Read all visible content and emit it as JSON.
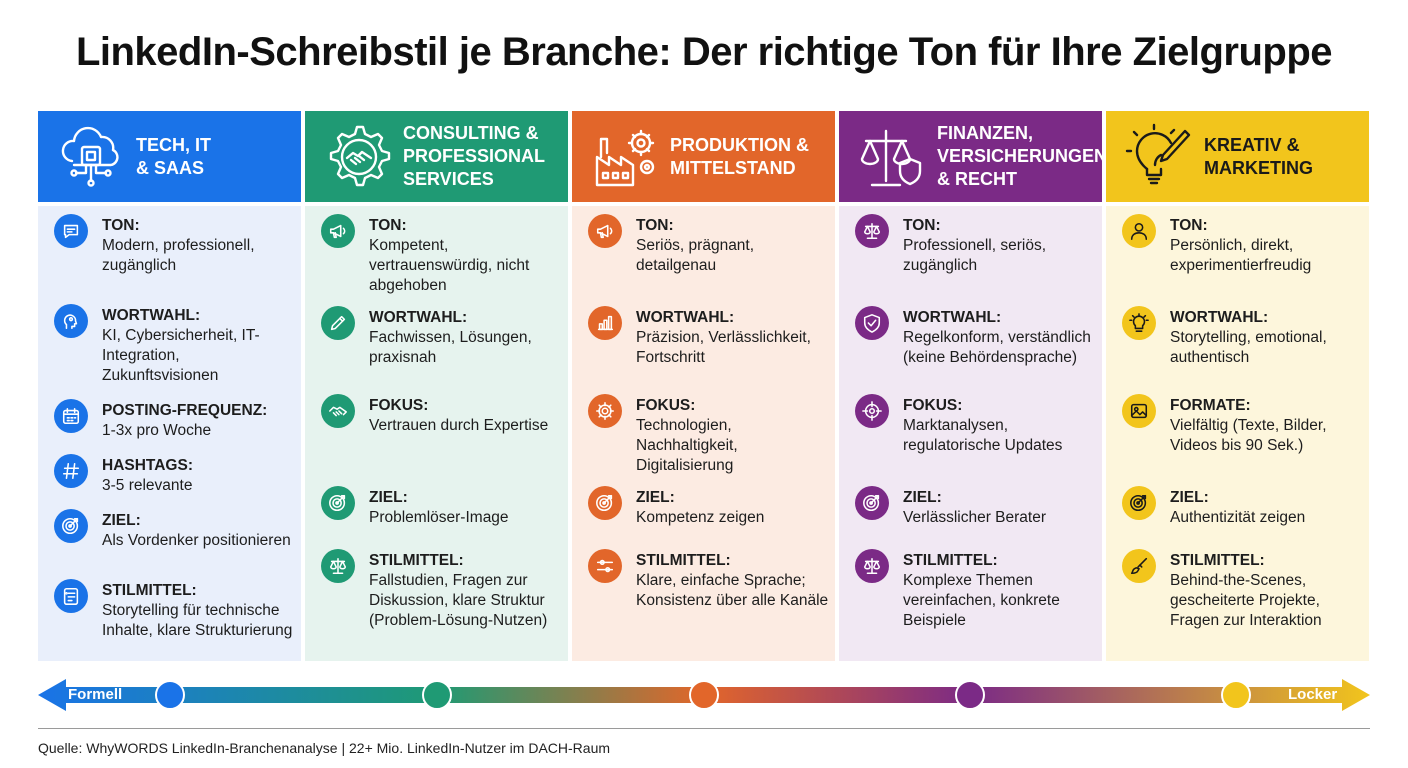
{
  "title": "LinkedIn-Schreibstil je Branche: Der richtige Ton für Ihre Zielgruppe",
  "columns": [
    {
      "header": "TECH, IT\n& SAAS",
      "header_icon": "cloud-chip-icon",
      "color": "#1a73e8",
      "body_bg": "#e9effb",
      "items": [
        {
          "icon": "chat-icon",
          "label": "TON:",
          "value": "Modern, professionell, zugänglich"
        },
        {
          "icon": "ai-head-icon",
          "label": "WORTWAHL:",
          "value": "KI, Cybersicherheit, IT-Integration, Zukunftsvisionen"
        },
        {
          "icon": "calendar-icon",
          "label": "POSTING-FREQUENZ:",
          "value": "1-3x pro Woche"
        },
        {
          "icon": "hashtag-icon",
          "label": "HASHTAGS:",
          "value": "3-5 relevante"
        },
        {
          "icon": "target-icon",
          "label": "ZIEL:",
          "value": "Als Vordenker positionieren"
        },
        {
          "icon": "document-icon",
          "label": "STILMITTEL:",
          "value": "Storytelling für technische Inhalte, klare Strukturierung"
        }
      ]
    },
    {
      "header": "CONSULTING &\nPROFESSIONAL\nSERVICES",
      "header_icon": "gear-handshake-icon",
      "color": "#1f9a74",
      "body_bg": "#e6f3ee",
      "items": [
        {
          "icon": "megaphone-icon",
          "label": "TON:",
          "value": "Kompetent, vertrauenswürdig, nicht abgehoben"
        },
        {
          "icon": "pencil-icon",
          "label": "WORTWAHL:",
          "value": "Fachwissen, Lösungen, praxisnah"
        },
        {
          "icon": "handshake-icon",
          "label": "FOKUS:",
          "value": "Vertrauen durch Expertise"
        },
        {
          "icon": "target-icon",
          "label": "ZIEL:",
          "value": "Problemlöser-Image"
        },
        {
          "icon": "scale-icon",
          "label": "STILMITTEL:",
          "value": "Fallstudien, Fragen zur Diskussion, klare Struktur (Problem-Lösung-Nutzen)"
        }
      ]
    },
    {
      "header": "PRODUKTION &\nMITTELSTAND",
      "header_icon": "factory-gears-icon",
      "color": "#e2662a",
      "body_bg": "#fcebe2",
      "items": [
        {
          "icon": "megaphone-icon",
          "label": "TON:",
          "value": "Seriös, prägnant, detailgenau"
        },
        {
          "icon": "bar-chart-icon",
          "label": "WORTWAHL:",
          "value": "Präzision, Verlässlichkeit, Fortschritt"
        },
        {
          "icon": "gear-icon",
          "label": "FOKUS:",
          "value": "Technologien, Nachhaltigkeit, Digitalisierung"
        },
        {
          "icon": "target-icon",
          "label": "ZIEL:",
          "value": "Kompetenz zeigen"
        },
        {
          "icon": "sliders-icon",
          "label": "STILMITTEL:",
          "value": "Klare, einfache Sprache; Konsistenz über alle Kanäle"
        }
      ]
    },
    {
      "header": "FINANZEN,\nVERSICHERUNGEN\n& RECHT",
      "header_icon": "scale-shield-icon",
      "color": "#7b2a86",
      "body_bg": "#f1e8f3",
      "items": [
        {
          "icon": "scale-icon",
          "label": "TON:",
          "value": "Professionell, seriös, zugänglich"
        },
        {
          "icon": "shield-icon",
          "label": "WORTWAHL:",
          "value": "Regelkonform, verständlich (keine Behördensprache)"
        },
        {
          "icon": "crosshair-icon",
          "label": "FOKUS:",
          "value": "Marktanalysen, regulatorische Updates"
        },
        {
          "icon": "target-icon",
          "label": "ZIEL:",
          "value": "Verlässlicher Berater"
        },
        {
          "icon": "scale-icon",
          "label": "STILMITTEL:",
          "value": "Komplexe Themen vereinfachen, konkrete Beispiele"
        }
      ]
    },
    {
      "header": "KREATIV &\nMARKETING",
      "header_icon": "lightbulb-brush-icon",
      "color": "#f2c51c",
      "body_bg": "#fdf6dc",
      "items": [
        {
          "icon": "person-icon",
          "label": "TON:",
          "value": "Persönlich, direkt, experimentierfreudig"
        },
        {
          "icon": "lightbulb-icon",
          "label": "WORTWAHL:",
          "value": "Storytelling, emotional, authentisch"
        },
        {
          "icon": "image-icon",
          "label": "FORMATE:",
          "value": "Vielfältig (Texte, Bilder, Videos bis 90 Sek.)"
        },
        {
          "icon": "target-icon",
          "label": "ZIEL:",
          "value": "Authentizität zeigen"
        },
        {
          "icon": "brush-icon",
          "label": "STILMITTEL:",
          "value": "Behind-the-Scenes, gescheiterte Projekte, Fragen zur Interaktion"
        }
      ]
    }
  ],
  "scale": {
    "left_label": "Formell",
    "right_label": "Locker",
    "colors": [
      "#1a73e8",
      "#1f9a74",
      "#e2662a",
      "#7b2a86",
      "#f2c51c"
    ]
  },
  "source": "Quelle: WhyWORDS LinkedIn-Branchenanalyse | 22+ Mio. LinkedIn-Nutzer im DACH-Raum"
}
